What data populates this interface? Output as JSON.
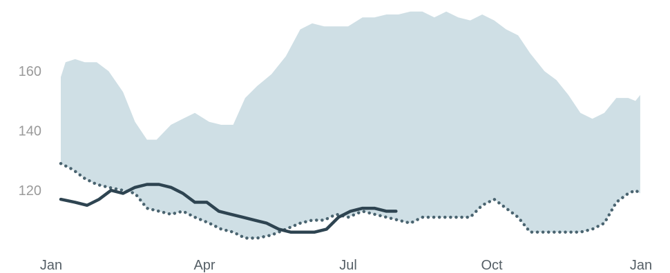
{
  "chart_data": {
    "type": "area",
    "title": "",
    "xlabel": "",
    "ylabel": "",
    "ylim": [
      102,
      182
    ],
    "xlim": [
      0,
      12
    ],
    "grid": false,
    "legend": "none",
    "x_ticks": [
      {
        "x": 0,
        "label": "Jan"
      },
      {
        "x": 3,
        "label": "Apr"
      },
      {
        "x": 6,
        "label": "Jul"
      },
      {
        "x": 9,
        "label": "Oct"
      },
      {
        "x": 12,
        "label": "Jan"
      }
    ],
    "y_ticks": [
      {
        "y": 120,
        "label": "120"
      },
      {
        "y": 140,
        "label": "140"
      },
      {
        "y": 160,
        "label": "160"
      }
    ],
    "series": [
      {
        "role": "range-upper",
        "style": "area",
        "color": "#cfdfe5",
        "points": [
          [
            0.0,
            158
          ],
          [
            0.1,
            163
          ],
          [
            0.3,
            164
          ],
          [
            0.5,
            163
          ],
          [
            0.75,
            163
          ],
          [
            1.0,
            160
          ],
          [
            1.3,
            153
          ],
          [
            1.55,
            143
          ],
          [
            1.8,
            137
          ],
          [
            2.0,
            137
          ],
          [
            2.3,
            142
          ],
          [
            2.55,
            144
          ],
          [
            2.8,
            146
          ],
          [
            3.1,
            143
          ],
          [
            3.35,
            142
          ],
          [
            3.6,
            142
          ],
          [
            3.85,
            151
          ],
          [
            4.1,
            155
          ],
          [
            4.4,
            159
          ],
          [
            4.7,
            165
          ],
          [
            5.0,
            174
          ],
          [
            5.25,
            176
          ],
          [
            5.5,
            175
          ],
          [
            5.75,
            175
          ],
          [
            6.0,
            175
          ],
          [
            6.3,
            178
          ],
          [
            6.55,
            178
          ],
          [
            6.8,
            179
          ],
          [
            7.05,
            179
          ],
          [
            7.3,
            180
          ],
          [
            7.55,
            180
          ],
          [
            7.8,
            178
          ],
          [
            8.05,
            180
          ],
          [
            8.3,
            178
          ],
          [
            8.55,
            177
          ],
          [
            8.8,
            179
          ],
          [
            9.05,
            177
          ],
          [
            9.3,
            174
          ],
          [
            9.55,
            172
          ],
          [
            9.8,
            166
          ],
          [
            10.1,
            160
          ],
          [
            10.35,
            157
          ],
          [
            10.6,
            152
          ],
          [
            10.85,
            146
          ],
          [
            11.1,
            144
          ],
          [
            11.35,
            146
          ],
          [
            11.6,
            151
          ],
          [
            11.85,
            151
          ],
          [
            12.0,
            150
          ],
          [
            12.1,
            152
          ]
        ]
      },
      {
        "role": "range-lower",
        "style": "dotted",
        "color": "#4a6470",
        "points": [
          [
            0.0,
            129
          ],
          [
            0.25,
            127
          ],
          [
            0.5,
            124
          ],
          [
            0.75,
            122
          ],
          [
            1.0,
            121
          ],
          [
            1.3,
            120
          ],
          [
            1.55,
            119
          ],
          [
            1.8,
            114
          ],
          [
            2.05,
            113
          ],
          [
            2.3,
            112
          ],
          [
            2.55,
            113
          ],
          [
            2.8,
            111
          ],
          [
            3.1,
            109
          ],
          [
            3.35,
            107
          ],
          [
            3.6,
            106
          ],
          [
            3.85,
            104
          ],
          [
            4.1,
            104
          ],
          [
            4.4,
            105
          ],
          [
            4.7,
            107
          ],
          [
            5.0,
            109
          ],
          [
            5.25,
            110
          ],
          [
            5.5,
            110
          ],
          [
            5.75,
            112
          ],
          [
            6.0,
            111
          ],
          [
            6.3,
            113
          ],
          [
            6.55,
            112
          ],
          [
            6.8,
            111
          ],
          [
            7.05,
            110
          ],
          [
            7.3,
            109
          ],
          [
            7.55,
            111
          ],
          [
            7.8,
            111
          ],
          [
            8.05,
            111
          ],
          [
            8.3,
            111
          ],
          [
            8.55,
            111
          ],
          [
            8.8,
            115
          ],
          [
            9.05,
            117
          ],
          [
            9.3,
            114
          ],
          [
            9.55,
            111
          ],
          [
            9.8,
            106
          ],
          [
            10.1,
            106
          ],
          [
            10.35,
            106
          ],
          [
            10.6,
            106
          ],
          [
            10.85,
            106
          ],
          [
            11.1,
            107
          ],
          [
            11.35,
            109
          ],
          [
            11.6,
            116
          ],
          [
            11.85,
            119
          ],
          [
            12.0,
            120
          ],
          [
            12.1,
            119
          ]
        ]
      },
      {
        "role": "current",
        "style": "solid",
        "color": "#2e4451",
        "points": [
          [
            0.0,
            117
          ],
          [
            0.3,
            116
          ],
          [
            0.55,
            115
          ],
          [
            0.8,
            117
          ],
          [
            1.05,
            120
          ],
          [
            1.3,
            119
          ],
          [
            1.55,
            121
          ],
          [
            1.8,
            122
          ],
          [
            2.05,
            122
          ],
          [
            2.3,
            121
          ],
          [
            2.55,
            119
          ],
          [
            2.8,
            116
          ],
          [
            3.05,
            116
          ],
          [
            3.3,
            113
          ],
          [
            3.55,
            112
          ],
          [
            3.8,
            111
          ],
          [
            4.05,
            110
          ],
          [
            4.3,
            109
          ],
          [
            4.55,
            107
          ],
          [
            4.8,
            106
          ],
          [
            5.05,
            106
          ],
          [
            5.3,
            106
          ],
          [
            5.55,
            107
          ],
          [
            5.8,
            111
          ],
          [
            6.05,
            113
          ],
          [
            6.3,
            114
          ],
          [
            6.55,
            114
          ],
          [
            6.8,
            113
          ],
          [
            7.0,
            113
          ]
        ]
      }
    ]
  }
}
